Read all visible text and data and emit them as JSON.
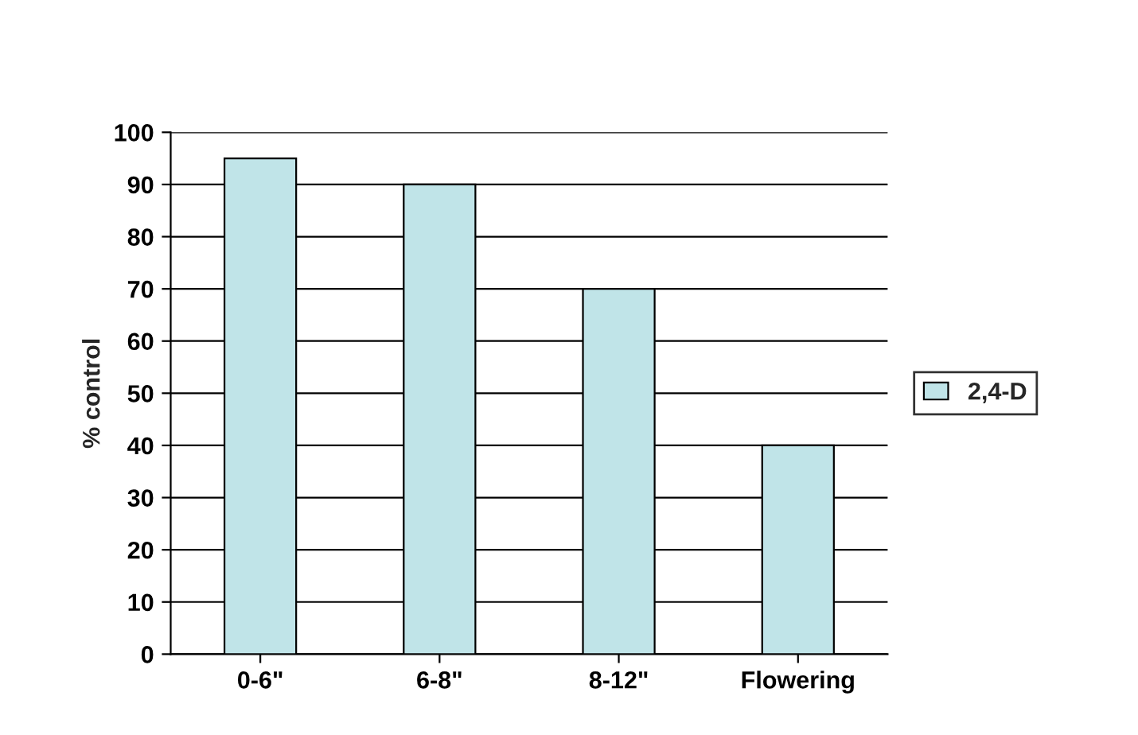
{
  "chart_data": {
    "type": "bar",
    "ylabel": "% control",
    "categories": [
      "0-6\"",
      "6-8\"",
      "8-12\"",
      "Flowering"
    ],
    "series": [
      {
        "name": "2,4-D",
        "color": "#c0e4e8",
        "values": [
          95,
          90,
          70,
          40
        ]
      }
    ],
    "ylim": [
      0,
      100
    ],
    "yticks": [
      0,
      10,
      20,
      30,
      40,
      50,
      60,
      70,
      80,
      90,
      100
    ],
    "grid": "y",
    "legend": "right"
  }
}
